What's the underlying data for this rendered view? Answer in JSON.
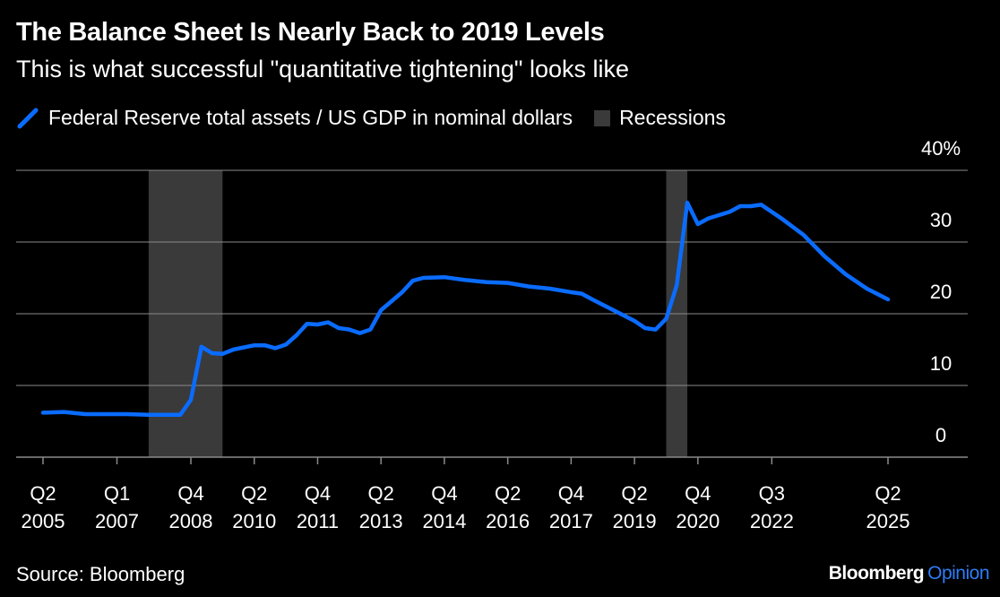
{
  "header": {
    "title": "The Balance Sheet Is Nearly Back to 2019 Levels",
    "subtitle": "This is what successful \"quantitative tightening\" looks like"
  },
  "legend": {
    "series_label": "Federal Reserve total assets / US GDP in nominal dollars",
    "recession_label": "Recessions"
  },
  "footer": {
    "source": "Source: Bloomberg",
    "brand_main": "Bloomberg",
    "brand_accent": "Opinion"
  },
  "colors": {
    "line": "#0a6cff",
    "recession": "#3a3a3a",
    "grid": "#8a8a8a",
    "text": "#ffffff",
    "background": "#000000",
    "brand_accent": "#2f7cf6"
  },
  "chart_data": {
    "type": "line",
    "x_unit": "year (decimal)",
    "y_unit": "percent",
    "ylim": [
      0,
      40
    ],
    "y_ticks": [
      {
        "value": 0,
        "label": "0"
      },
      {
        "value": 10,
        "label": "10"
      },
      {
        "value": 20,
        "label": "20"
      },
      {
        "value": 30,
        "label": "30"
      },
      {
        "value": 40,
        "label": "40%"
      }
    ],
    "x_ticks": [
      {
        "value": 2005.25,
        "q": "Q2",
        "year": "2005"
      },
      {
        "value": 2007.0,
        "q": "Q1",
        "year": "2007"
      },
      {
        "value": 2008.75,
        "q": "Q4",
        "year": "2008"
      },
      {
        "value": 2010.25,
        "q": "Q2",
        "year": "2010"
      },
      {
        "value": 2011.75,
        "q": "Q4",
        "year": "2011"
      },
      {
        "value": 2013.25,
        "q": "Q2",
        "year": "2013"
      },
      {
        "value": 2014.75,
        "q": "Q4",
        "year": "2014"
      },
      {
        "value": 2016.25,
        "q": "Q2",
        "year": "2016"
      },
      {
        "value": 2017.75,
        "q": "Q4",
        "year": "2017"
      },
      {
        "value": 2019.25,
        "q": "Q2",
        "year": "2019"
      },
      {
        "value": 2020.75,
        "q": "Q4",
        "year": "2020"
      },
      {
        "value": 2022.5,
        "q": "Q3",
        "year": "2022"
      },
      {
        "value": 2025.25,
        "q": "Q2",
        "year": "2025"
      }
    ],
    "grid": true,
    "recessions": [
      {
        "start": 2007.75,
        "end": 2009.5
      },
      {
        "start": 2020.0,
        "end": 2020.5
      }
    ],
    "series": [
      {
        "name": "Federal Reserve total assets / US GDP in nominal dollars",
        "points": [
          [
            2005.25,
            6.2
          ],
          [
            2005.75,
            6.3
          ],
          [
            2006.25,
            6.0
          ],
          [
            2006.75,
            6.0
          ],
          [
            2007.25,
            6.0
          ],
          [
            2007.75,
            5.9
          ],
          [
            2008.25,
            5.9
          ],
          [
            2008.5,
            5.9
          ],
          [
            2008.75,
            8.0
          ],
          [
            2009.0,
            15.4
          ],
          [
            2009.25,
            14.5
          ],
          [
            2009.5,
            14.4
          ],
          [
            2009.75,
            15.0
          ],
          [
            2010.25,
            15.6
          ],
          [
            2010.5,
            15.6
          ],
          [
            2010.75,
            15.2
          ],
          [
            2011.0,
            15.7
          ],
          [
            2011.25,
            17.0
          ],
          [
            2011.5,
            18.6
          ],
          [
            2011.75,
            18.5
          ],
          [
            2012.0,
            18.8
          ],
          [
            2012.25,
            18.0
          ],
          [
            2012.5,
            17.8
          ],
          [
            2012.75,
            17.3
          ],
          [
            2013.0,
            17.8
          ],
          [
            2013.25,
            20.5
          ],
          [
            2013.75,
            23.0
          ],
          [
            2014.0,
            24.6
          ],
          [
            2014.25,
            25.0
          ],
          [
            2014.75,
            25.1
          ],
          [
            2015.25,
            24.7
          ],
          [
            2015.75,
            24.4
          ],
          [
            2016.25,
            24.3
          ],
          [
            2016.75,
            23.8
          ],
          [
            2017.25,
            23.5
          ],
          [
            2017.75,
            23.0
          ],
          [
            2018.0,
            22.8
          ],
          [
            2018.25,
            22.0
          ],
          [
            2018.75,
            20.5
          ],
          [
            2019.25,
            19.0
          ],
          [
            2019.5,
            18.0
          ],
          [
            2019.75,
            17.8
          ],
          [
            2020.0,
            19.3
          ],
          [
            2020.25,
            24.0
          ],
          [
            2020.5,
            35.5
          ],
          [
            2020.75,
            32.5
          ],
          [
            2021.0,
            33.3
          ],
          [
            2021.5,
            34.2
          ],
          [
            2021.75,
            35.0
          ],
          [
            2022.0,
            35.0
          ],
          [
            2022.25,
            35.2
          ],
          [
            2022.75,
            33.2
          ],
          [
            2023.25,
            31.0
          ],
          [
            2023.75,
            28.0
          ],
          [
            2024.25,
            25.5
          ],
          [
            2024.75,
            23.5
          ],
          [
            2025.25,
            22.0
          ]
        ]
      }
    ]
  }
}
